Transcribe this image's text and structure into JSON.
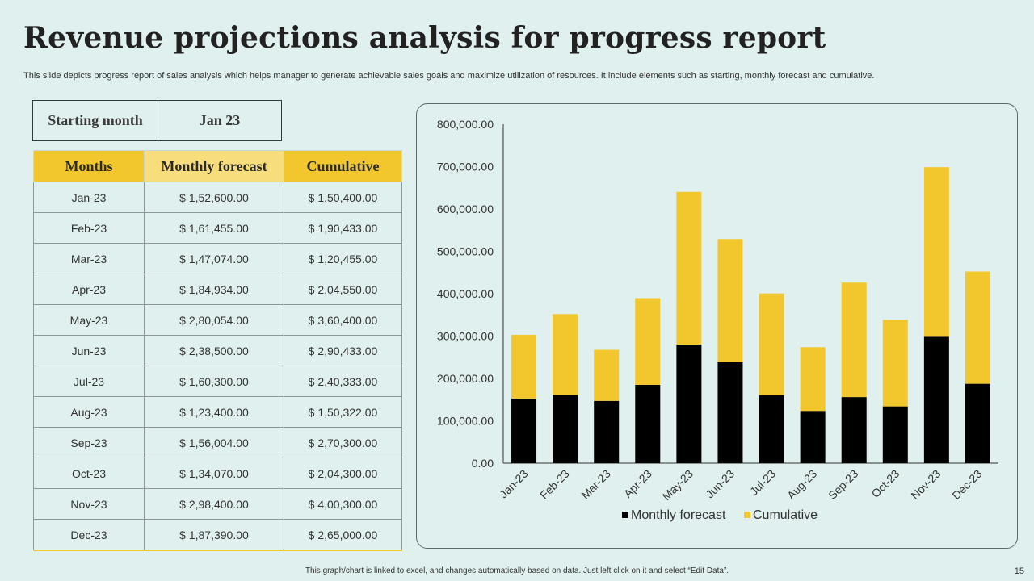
{
  "title": "Revenue projections analysis for progress report",
  "subtitle": "This slide depicts progress report of sales analysis which helps manager to generate achievable sales goals and maximize utilization of resources. It include elements such as starting, monthly forecast and cumulative.",
  "starting": {
    "label": "Starting month",
    "value": "Jan 23"
  },
  "table": {
    "headers": [
      "Months",
      "Monthly forecast",
      "Cumulative"
    ],
    "rows": [
      [
        "Jan-23",
        "$ 1,52,600.00",
        "$ 1,50,400.00"
      ],
      [
        "Feb-23",
        "$ 1,61,455.00",
        "$ 1,90,433.00"
      ],
      [
        "Mar-23",
        "$ 1,47,074.00",
        "$ 1,20,455.00"
      ],
      [
        "Apr-23",
        "$ 1,84,934.00",
        "$ 2,04,550.00"
      ],
      [
        "May-23",
        "$ 2,80,054.00",
        "$ 3,60,400.00"
      ],
      [
        "Jun-23",
        "$ 2,38,500.00",
        "$ 2,90,433.00"
      ],
      [
        "Jul-23",
        "$ 1,60,300.00",
        "$ 2,40,333.00"
      ],
      [
        "Aug-23",
        "$ 1,23,400.00",
        "$ 1,50,322.00"
      ],
      [
        "Sep-23",
        "$ 1,56,004.00",
        "$ 2,70,300.00"
      ],
      [
        "Oct-23",
        "$ 1,34,070.00",
        "$ 2,04,300.00"
      ],
      [
        "Nov-23",
        "$ 2,98,400.00",
        "$ 4,00,300.00"
      ],
      [
        "Dec-23",
        "$ 1,87,390.00",
        "$ 2,65,000.00"
      ]
    ]
  },
  "chart_data": {
    "type": "bar",
    "stacked": true,
    "categories": [
      "Jan-23",
      "Feb-23",
      "Mar-23",
      "Apr-23",
      "May-23",
      "Jun-23",
      "Jul-23",
      "Aug-23",
      "Sep-23",
      "Oct-23",
      "Nov-23",
      "Dec-23"
    ],
    "series": [
      {
        "name": "Monthly forecast",
        "color": "#000000",
        "values": [
          152600,
          161455,
          147074,
          184934,
          280054,
          238500,
          160300,
          123400,
          156004,
          134070,
          298400,
          187390
        ]
      },
      {
        "name": "Cumulative",
        "color": "#f2c72e",
        "values": [
          150400,
          190433,
          120455,
          204550,
          360400,
          290433,
          240333,
          150322,
          270300,
          204300,
          400300,
          265000
        ]
      }
    ],
    "yticks": [
      "0.00",
      "100,000.00",
      "200,000.00",
      "300,000.00",
      "400,000.00",
      "500,000.00",
      "600,000.00",
      "700,000.00",
      "800,000.00"
    ],
    "ylim": [
      0,
      800000
    ],
    "grid": false,
    "legend_position": "bottom"
  },
  "footer": "This graph/chart is linked to excel, and changes automatically based on data. Just left click on it and select “Edit Data”.",
  "page_number": "15"
}
